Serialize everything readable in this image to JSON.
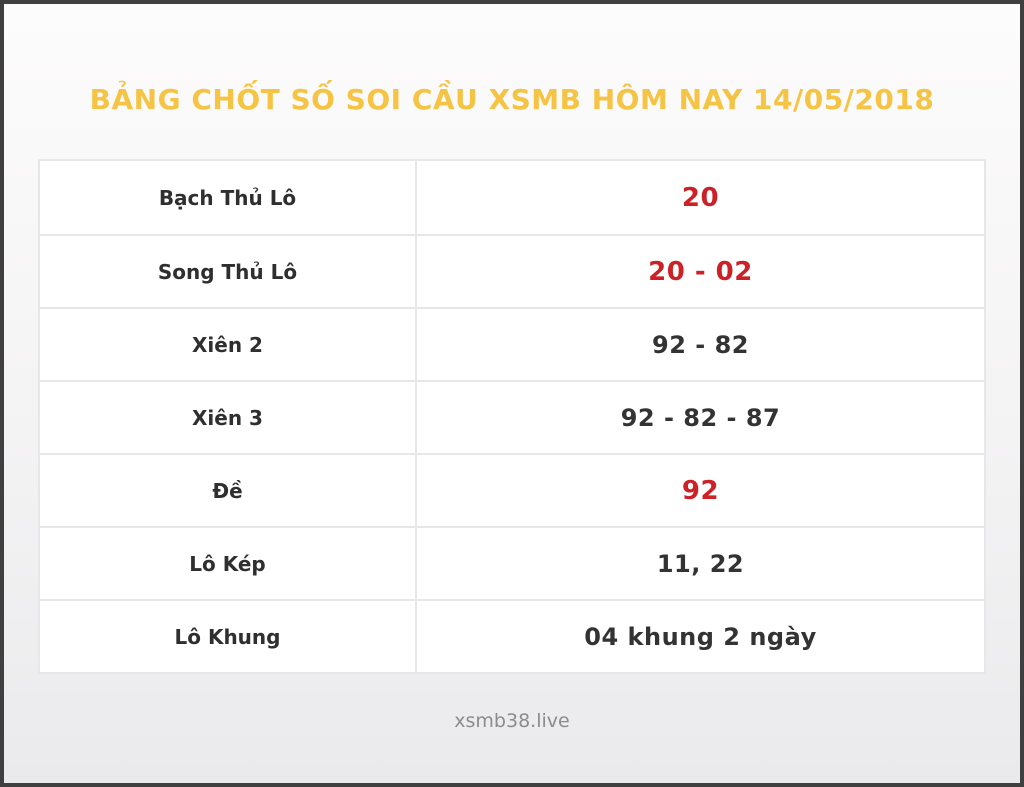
{
  "page": {
    "title": "BẢNG CHỐT SỐ SOI CẦU XSMB HÔM NAY 14/05/2018",
    "footer": "xsmb38.live"
  },
  "colors": {
    "title-color": "#f6c444",
    "highlight-color": "#cb2127",
    "text-color": "#333333",
    "footer-color": "#8c8c8c",
    "frame-color": "#3f3f3f",
    "table-border": "#e7e7e9"
  },
  "table": {
    "rows": [
      {
        "label": "Bạch Thủ Lô",
        "value": "20",
        "highlight": true
      },
      {
        "label": "Song Thủ Lô",
        "value": "20 - 02",
        "highlight": true
      },
      {
        "label": "Xiên 2",
        "value": "92 - 82",
        "highlight": false
      },
      {
        "label": "Xiên 3",
        "value": "92 - 82 - 87",
        "highlight": false
      },
      {
        "label": "Đề",
        "value": "92",
        "highlight": true
      },
      {
        "label": "Lô Kép",
        "value": "11, 22",
        "highlight": false
      },
      {
        "label": "Lô Khung",
        "value": "04 khung 2 ngày",
        "highlight": false
      }
    ]
  }
}
